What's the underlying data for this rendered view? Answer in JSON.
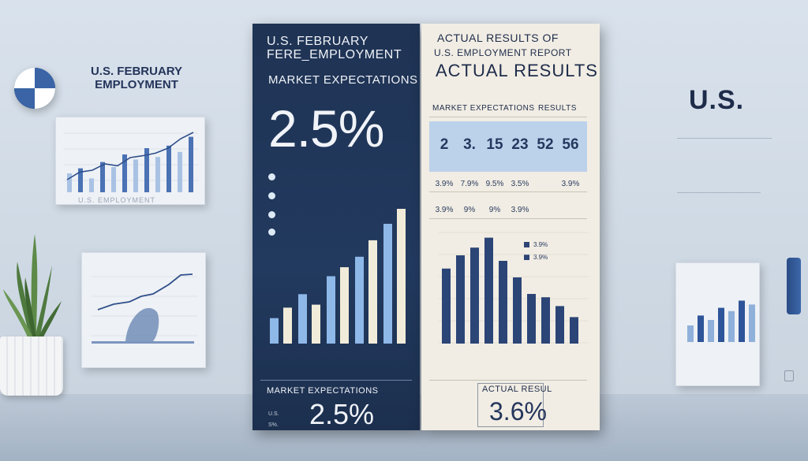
{
  "left_wall": {
    "title": "U.S. FEBRUARY EMPLOYMENT",
    "frame1_caption": "U.S. EMPLOYMENT",
    "frame1_bars": [
      0.3,
      0.38,
      0.22,
      0.48,
      0.4,
      0.6,
      0.52,
      0.7,
      0.56,
      0.74,
      0.64,
      0.88
    ],
    "frame1_line": [
      0.2,
      0.32,
      0.35,
      0.45,
      0.42,
      0.55,
      0.58,
      0.62,
      0.7,
      0.85,
      0.95
    ]
  },
  "right_wall": {
    "title": "U.S.",
    "frame3_bars": [
      0.3,
      0.48,
      0.4,
      0.62,
      0.56,
      0.75,
      0.68
    ]
  },
  "poster_left": {
    "title_line1": "U.S. FEBRUARY",
    "title_line2": "FERE_EMPLOYMENT",
    "subtitle": "MARKET EXPECTATIONS",
    "big_value": "2.5%",
    "legend": [
      "",
      "",
      "",
      ""
    ],
    "bars": [
      {
        "light": 0.17,
        "pale": 0.24
      },
      {
        "light": 0.33,
        "pale": 0.26
      },
      {
        "light": 0.45,
        "pale": 0.51
      },
      {
        "light": 0.58,
        "pale": 0.69
      },
      {
        "light": 0.8,
        "pale": 0.9
      }
    ],
    "footer_header": "MARKET EXPECTATIONS",
    "footer_value": "2.5%",
    "footer_left": [
      "",
      "U.S.",
      "S%."
    ],
    "footer_right": [
      "",
      "",
      ""
    ]
  },
  "poster_right": {
    "title1": "ACTUAL RESULTS OF",
    "title2": "U.S. EMPLOYMENT REPORT",
    "title3": "ACTUAL RESULTS",
    "header_left": "MARKET EXPECTATIONS",
    "header_right": "RESULTS",
    "table_top": [
      "2",
      "3.",
      "15",
      "23",
      "52",
      "56"
    ],
    "row2": [
      "3.9%",
      "7.9%",
      "9.5%",
      "3.5%",
      "",
      "3.9%"
    ],
    "row3": [
      "3.9%",
      "9%",
      "9%",
      "3.9%",
      "",
      ""
    ],
    "legend": [
      "3.9%",
      "3.9%"
    ],
    "bars": [
      0.68,
      0.8,
      0.87,
      0.96,
      0.75,
      0.6,
      0.45,
      0.42,
      0.34,
      0.24
    ],
    "footer_header": "ACTUAL RESUL",
    "footer_value": "3.6%",
    "footer_left": [
      "",
      "",
      ""
    ],
    "footer_right": [
      "",
      "",
      ""
    ]
  }
}
